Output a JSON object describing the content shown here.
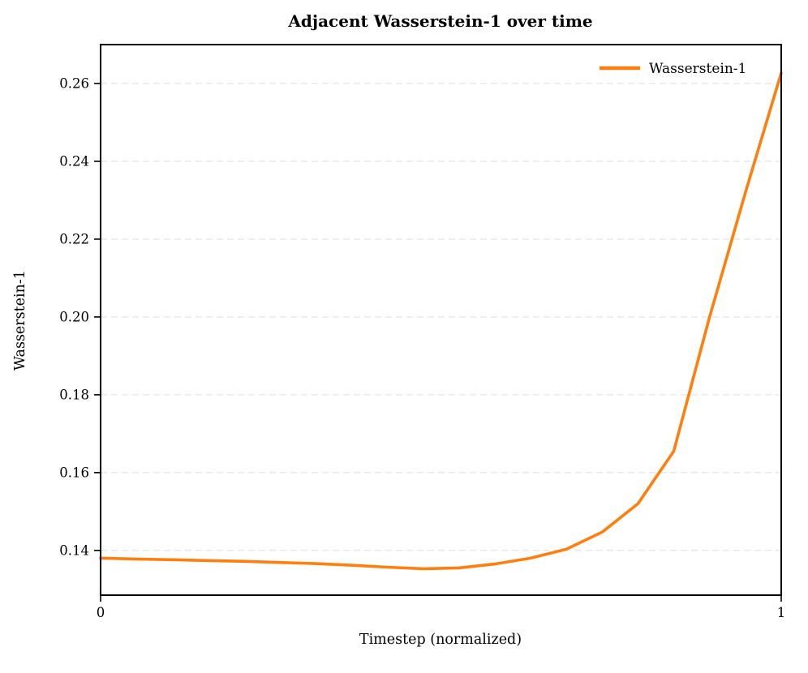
{
  "chart_data": {
    "type": "line",
    "title": "Adjacent Wasserstein-1 over time",
    "xlabel": "Timestep (normalized)",
    "ylabel": "Wasserstein-1",
    "legend": {
      "position": "upper right",
      "entries": [
        {
          "label": "Wasserstein-1",
          "color": "#ff7f0e"
        }
      ]
    },
    "series": [
      {
        "name": "Wasserstein-1",
        "color": "#ff7f0e",
        "x": [
          0,
          0.0526,
          0.1053,
          0.1579,
          0.2105,
          0.2632,
          0.3158,
          0.3684,
          0.4211,
          0.4737,
          0.5263,
          0.5789,
          0.6316,
          0.6842,
          0.7368,
          0.7895,
          0.8421,
          0.8947,
          0.9474,
          1
        ],
        "y": [
          0.138,
          0.1378,
          0.1376,
          0.1374,
          0.1372,
          0.1369,
          0.1366,
          0.1362,
          0.1357,
          0.1353,
          0.1355,
          0.1365,
          0.138,
          0.1403,
          0.1447,
          0.152,
          0.1655,
          0.2,
          0.232,
          0.2627
        ]
      }
    ],
    "xlim": [
      0,
      1
    ],
    "ylim": [
      0.1285,
      0.27
    ],
    "xticks": [
      0,
      1
    ],
    "xtick_labels": [
      "0",
      "1"
    ],
    "yticks": [
      0.14,
      0.16,
      0.18,
      0.2,
      0.22,
      0.24,
      0.26
    ],
    "ytick_labels": [
      "0.14",
      "0.16",
      "0.18",
      "0.20",
      "0.22",
      "0.24",
      "0.26"
    ],
    "grid": {
      "axis": "y",
      "style": "dashed",
      "color": "#e0e0e0",
      "on": true
    },
    "colors": {
      "line": "#ff7f0e",
      "spine": "#000000",
      "tick": "#000000",
      "background": "#ffffff"
    }
  }
}
